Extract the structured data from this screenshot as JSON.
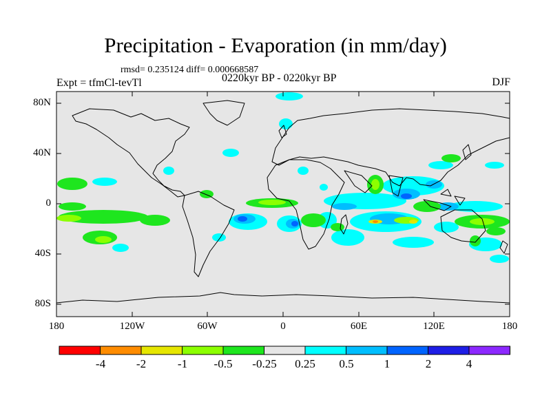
{
  "title": "Precipitation - Evaporation (in mm/day)",
  "stats": "rmsd= 0.235124 diff= 0.000668587",
  "experiment": "Expt = tfmCl-tevTl",
  "period": "0220kyr BP - 0220kyr BP",
  "season": "DJF",
  "axes": {
    "lat_labels": [
      "80N",
      "40N",
      "0",
      "40S",
      "80S"
    ],
    "lon_labels": [
      "180",
      "120W",
      "60W",
      "0",
      "60E",
      "120E",
      "180"
    ]
  },
  "colorbar": {
    "colors": [
      "#ff0000",
      "#ff8c00",
      "#e6e600",
      "#8cff00",
      "#1ee61e",
      "#e6e6e6",
      "#00ffff",
      "#00beff",
      "#0064ff",
      "#1e1ee6",
      "#8c28ff"
    ],
    "labels": [
      "-4",
      "-2",
      "-1",
      "-0.5",
      "-0.25",
      "0.25",
      "0.5",
      "1",
      "2",
      "4"
    ]
  },
  "colors": {
    "background_field": "#e6e6e6",
    "coastline": "#000000"
  }
}
